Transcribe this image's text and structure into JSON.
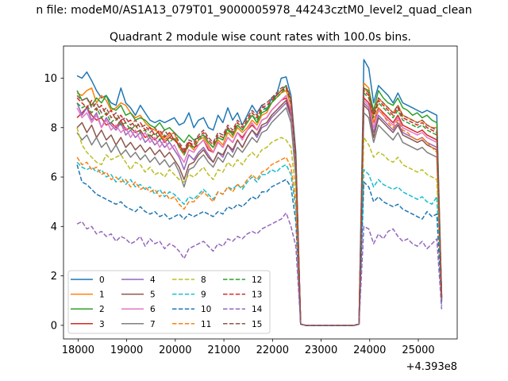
{
  "chart_data": {
    "type": "line",
    "suptitle": "n file: modeM0/AS1A13_079T01_9000005978_44243cztM0_level2_quad_clean",
    "title": "Quadrant 2 module wise count rates with 100.0s bins.",
    "xlabel": "",
    "ylabel": "",
    "x_offset_label": "+4.393e8",
    "xlim": [
      17700,
      25800
    ],
    "ylim": [
      -0.55,
      11.3
    ],
    "xticks": [
      18000,
      19000,
      20000,
      21000,
      22000,
      23000,
      24000,
      25000
    ],
    "yticks": [
      0,
      2,
      4,
      6,
      8,
      10
    ],
    "grid": false,
    "legend_position": "lower-left",
    "legend_columns": 4,
    "series_colors": [
      "#1f77b4",
      "#ff7f0e",
      "#2ca02c",
      "#d62728",
      "#9467bd",
      "#8c564b",
      "#e377c2",
      "#7f7f7f",
      "#bcbd22",
      "#17becf",
      "#1f77b4",
      "#ff7f0e",
      "#2ca02c",
      "#d62728",
      "#9467bd",
      "#8c564b"
    ],
    "series_styles": [
      "solid",
      "solid",
      "solid",
      "solid",
      "solid",
      "solid",
      "solid",
      "solid",
      "dashed",
      "dashed",
      "dashed",
      "dashed",
      "dashed",
      "dashed",
      "dashed",
      "dashed"
    ],
    "segment1_x_start": 17980,
    "segment1_x_step": 100,
    "segment2_x_start": 23780,
    "segment2_x_step": 100,
    "gap_x": [
      22680,
      22780,
      22880,
      22980,
      23080,
      23180,
      23280,
      23380,
      23480,
      23580,
      23680
    ],
    "series": [
      {
        "name": "0",
        "segment1": [
          10.1,
          10.0,
          10.25,
          9.9,
          9.5,
          9.2,
          9.3,
          9.0,
          8.9,
          9.6,
          9.0,
          8.8,
          8.5,
          8.9,
          8.6,
          8.3,
          8.2,
          8.3,
          8.2,
          8.3,
          8.4,
          8.1,
          8.2,
          8.6,
          8.0,
          8.3,
          8.4,
          8.0,
          7.9,
          8.5,
          8.2,
          8.8,
          8.3,
          8.6,
          8.1,
          8.5,
          8.9,
          8.6,
          8.9,
          8.7,
          9.2,
          9.3,
          10.0,
          10.05,
          9.3,
          7.0,
          0.05
        ],
        "segment2": [
          0.05,
          10.75,
          10.4,
          9.0,
          9.7,
          9.5,
          9.3,
          9.0,
          9.4,
          9.0,
          8.9,
          8.8,
          8.7,
          8.6,
          8.7,
          8.6,
          8.5,
          1.2
        ]
      },
      {
        "name": "1",
        "segment1": [
          9.4,
          9.3,
          9.5,
          9.6,
          9.0,
          9.3,
          9.1,
          8.7,
          8.8,
          9.0,
          8.9,
          8.6,
          8.4,
          8.5,
          8.2,
          8.0,
          7.9,
          7.8,
          7.5,
          7.7,
          7.8,
          7.2,
          6.9,
          7.3,
          7.1,
          7.5,
          7.6,
          7.3,
          7.0,
          7.5,
          7.3,
          7.8,
          7.6,
          8.0,
          7.8,
          8.0,
          8.3,
          8.1,
          8.5,
          8.6,
          9.0,
          9.2,
          9.4,
          9.5,
          8.9,
          6.5,
          0.05
        ],
        "segment2": [
          0.05,
          9.8,
          9.6,
          8.5,
          9.2,
          9.0,
          8.8,
          8.6,
          8.9,
          8.5,
          8.4,
          8.3,
          8.2,
          8.3,
          8.1,
          8.0,
          8.0,
          1.1
        ]
      },
      {
        "name": "2",
        "segment1": [
          9.5,
          9.1,
          9.2,
          8.9,
          9.2,
          9.0,
          9.3,
          8.8,
          8.7,
          8.9,
          8.5,
          8.6,
          8.3,
          8.4,
          8.3,
          8.1,
          8.0,
          8.2,
          7.9,
          8.0,
          7.8,
          7.6,
          7.4,
          7.7,
          7.5,
          7.6,
          7.7,
          7.4,
          7.2,
          7.6,
          7.5,
          8.0,
          7.7,
          8.1,
          7.9,
          8.2,
          8.5,
          8.2,
          8.6,
          8.7,
          9.0,
          9.3,
          9.5,
          9.7,
          9.1,
          6.8,
          0.05
        ],
        "segment2": [
          0.05,
          9.6,
          9.5,
          8.7,
          9.5,
          9.2,
          9.0,
          8.9,
          9.2,
          8.8,
          8.7,
          8.5,
          8.6,
          8.4,
          8.5,
          8.3,
          8.2,
          1.15
        ]
      },
      {
        "name": "3",
        "segment1": [
          8.4,
          8.6,
          8.8,
          8.5,
          8.3,
          8.4,
          8.1,
          8.2,
          8.0,
          8.3,
          7.9,
          8.0,
          7.8,
          7.9,
          7.6,
          7.7,
          7.5,
          7.7,
          7.4,
          7.6,
          7.5,
          7.3,
          7.0,
          7.4,
          7.2,
          7.3,
          7.5,
          7.1,
          7.0,
          7.4,
          7.2,
          7.6,
          7.4,
          7.8,
          7.6,
          7.9,
          8.1,
          7.9,
          8.3,
          8.4,
          8.7,
          8.9,
          9.1,
          9.2,
          8.6,
          6.3,
          0.05
        ],
        "segment2": [
          0.05,
          9.2,
          9.0,
          8.2,
          8.8,
          8.6,
          8.4,
          8.2,
          8.5,
          8.1,
          8.0,
          7.9,
          7.8,
          7.9,
          7.7,
          7.6,
          7.5,
          1.05
        ]
      },
      {
        "name": "4",
        "segment1": [
          9.0,
          8.5,
          8.8,
          8.3,
          8.6,
          8.0,
          8.4,
          8.1,
          7.9,
          8.2,
          7.7,
          7.9,
          7.6,
          7.8,
          7.4,
          7.6,
          7.3,
          7.5,
          7.2,
          7.4,
          7.1,
          6.8,
          6.3,
          6.9,
          6.7,
          7.0,
          7.2,
          6.9,
          6.6,
          7.0,
          6.8,
          7.3,
          7.0,
          7.5,
          7.2,
          7.6,
          7.9,
          7.6,
          8.0,
          8.1,
          8.4,
          8.6,
          8.8,
          9.0,
          8.4,
          6.2,
          0.05
        ],
        "segment2": [
          0.05,
          9.0,
          8.8,
          7.8,
          8.5,
          8.3,
          8.1,
          7.9,
          8.2,
          7.8,
          7.7,
          7.6,
          7.5,
          7.6,
          7.4,
          7.3,
          7.2,
          1.0
        ]
      },
      {
        "name": "5",
        "segment1": [
          8.0,
          8.2,
          7.8,
          8.1,
          7.6,
          7.9,
          7.5,
          7.7,
          7.3,
          7.6,
          7.2,
          7.4,
          7.1,
          7.3,
          7.0,
          7.2,
          6.9,
          7.1,
          6.8,
          7.0,
          6.7,
          6.4,
          5.9,
          6.5,
          6.6,
          6.9,
          7.1,
          6.8,
          6.6,
          7.0,
          6.9,
          7.3,
          7.1,
          7.5,
          7.2,
          7.6,
          7.9,
          7.7,
          8.1,
          8.2,
          8.5,
          8.7,
          8.9,
          9.1,
          8.5,
          6.2,
          0.05
        ],
        "segment2": [
          0.05,
          8.9,
          8.7,
          7.6,
          8.4,
          8.2,
          8.0,
          7.8,
          8.1,
          7.7,
          7.6,
          7.5,
          7.4,
          7.5,
          7.3,
          7.2,
          7.1,
          1.0
        ]
      },
      {
        "name": "6",
        "segment1": [
          8.8,
          8.4,
          8.6,
          8.2,
          8.5,
          8.0,
          8.3,
          7.9,
          8.1,
          7.8,
          8.0,
          7.6,
          7.9,
          7.5,
          7.8,
          7.4,
          7.6,
          7.2,
          7.5,
          7.1,
          7.3,
          6.9,
          6.6,
          7.1,
          7.0,
          7.3,
          7.5,
          7.2,
          7.0,
          7.4,
          7.2,
          7.6,
          7.4,
          7.8,
          7.5,
          7.9,
          8.2,
          7.9,
          8.3,
          8.4,
          8.7,
          8.9,
          9.1,
          9.3,
          8.7,
          6.4,
          0.05
        ],
        "segment2": [
          0.05,
          9.1,
          8.9,
          8.0,
          8.7,
          8.5,
          8.3,
          8.1,
          8.4,
          8.0,
          7.9,
          7.8,
          7.7,
          7.8,
          7.6,
          7.5,
          7.4,
          1.05
        ]
      },
      {
        "name": "7",
        "segment1": [
          7.8,
          7.5,
          7.7,
          7.3,
          7.6,
          7.2,
          7.4,
          7.0,
          7.3,
          6.9,
          7.1,
          6.8,
          7.0,
          6.7,
          6.9,
          6.6,
          6.8,
          6.5,
          6.7,
          6.4,
          6.6,
          6.2,
          5.6,
          6.3,
          6.4,
          6.7,
          6.9,
          6.6,
          6.4,
          6.8,
          6.6,
          7.0,
          6.8,
          7.2,
          7.0,
          7.3,
          7.6,
          7.4,
          7.8,
          7.9,
          8.2,
          8.4,
          8.6,
          8.8,
          8.2,
          6.0,
          0.05
        ],
        "segment2": [
          0.05,
          8.6,
          8.4,
          7.4,
          8.1,
          7.9,
          7.7,
          7.5,
          7.8,
          7.4,
          7.3,
          7.2,
          7.1,
          7.2,
          7.0,
          6.9,
          6.8,
          0.95
        ]
      },
      {
        "name": "8",
        "segment1": [
          8.0,
          7.3,
          7.0,
          6.8,
          6.6,
          6.5,
          6.9,
          6.7,
          6.8,
          6.9,
          6.6,
          6.3,
          6.6,
          6.5,
          6.2,
          6.4,
          6.1,
          6.2,
          6.0,
          6.3,
          6.1,
          5.9,
          5.8,
          6.1,
          6.0,
          6.2,
          6.4,
          6.1,
          5.9,
          6.3,
          6.2,
          6.6,
          6.4,
          6.7,
          6.5,
          6.8,
          7.0,
          6.8,
          7.1,
          7.2,
          7.4,
          7.5,
          7.6,
          7.5,
          7.2,
          5.4,
          0.05
        ],
        "segment2": [
          0.05,
          7.6,
          7.3,
          6.8,
          7.0,
          6.9,
          6.7,
          6.6,
          6.8,
          6.5,
          6.4,
          6.3,
          6.2,
          6.3,
          6.1,
          6.0,
          5.9,
          0.9
        ]
      },
      {
        "name": "9",
        "segment1": [
          6.6,
          6.4,
          6.3,
          6.4,
          6.2,
          6.3,
          6.0,
          6.1,
          5.8,
          6.0,
          5.7,
          5.9,
          5.6,
          5.7,
          5.5,
          5.6,
          5.3,
          5.5,
          5.2,
          5.4,
          5.3,
          5.1,
          4.9,
          5.2,
          5.1,
          5.3,
          5.5,
          5.3,
          5.1,
          5.4,
          5.3,
          5.6,
          5.5,
          5.7,
          5.5,
          5.8,
          6.0,
          5.8,
          6.1,
          6.1,
          6.3,
          6.2,
          6.4,
          6.5,
          6.1,
          4.7,
          0.05
        ],
        "segment2": [
          0.05,
          6.3,
          6.1,
          5.6,
          5.9,
          5.7,
          5.6,
          5.5,
          5.6,
          5.4,
          5.3,
          5.2,
          5.1,
          5.2,
          5.0,
          4.9,
          5.2,
          0.85
        ]
      },
      {
        "name": "10",
        "segment1": [
          6.5,
          5.8,
          5.7,
          5.5,
          5.3,
          5.2,
          5.1,
          5.0,
          4.9,
          5.0,
          4.8,
          4.7,
          4.6,
          4.8,
          4.6,
          4.5,
          4.6,
          4.4,
          4.5,
          4.3,
          4.4,
          4.5,
          4.3,
          4.5,
          4.4,
          4.5,
          4.6,
          4.5,
          4.4,
          4.6,
          4.5,
          4.8,
          4.7,
          4.9,
          4.8,
          5.0,
          5.2,
          5.1,
          5.4,
          5.4,
          5.6,
          5.7,
          5.8,
          5.9,
          5.6,
          4.2,
          0.05
        ],
        "segment2": [
          0.05,
          5.8,
          5.6,
          5.0,
          5.2,
          5.0,
          4.9,
          4.8,
          4.9,
          4.7,
          4.6,
          4.5,
          4.4,
          4.3,
          4.6,
          4.4,
          4.5,
          0.8
        ]
      },
      {
        "name": "11",
        "segment1": [
          6.8,
          6.5,
          6.6,
          6.3,
          6.4,
          6.1,
          6.2,
          5.9,
          6.0,
          5.8,
          5.9,
          5.6,
          5.8,
          5.5,
          5.6,
          5.4,
          5.5,
          5.2,
          5.4,
          5.1,
          5.2,
          4.9,
          4.7,
          5.0,
          5.0,
          5.2,
          5.4,
          5.2,
          5.0,
          5.4,
          5.3,
          5.6,
          5.4,
          5.7,
          5.6,
          5.9,
          6.1,
          5.9,
          6.2,
          6.3,
          6.5,
          6.6,
          6.7,
          6.8,
          6.4,
          5.0,
          0.05
        ],
        "segment2": [
          0.05,
          9.6,
          9.4,
          8.2,
          8.8,
          8.5,
          8.2,
          8.0,
          8.3,
          7.9,
          7.8,
          7.6,
          7.5,
          7.6,
          7.4,
          7.2,
          7.0,
          1.0
        ]
      },
      {
        "name": "12",
        "segment1": [
          9.0,
          8.8,
          8.9,
          8.6,
          8.8,
          8.4,
          8.6,
          8.2,
          8.4,
          8.1,
          8.2,
          7.9,
          8.1,
          7.8,
          7.9,
          7.6,
          7.8,
          7.5,
          7.7,
          7.4,
          7.6,
          7.2,
          6.9,
          7.3,
          7.2,
          7.5,
          7.7,
          7.4,
          7.2,
          7.6,
          7.5,
          7.9,
          7.7,
          8.1,
          7.9,
          8.2,
          8.5,
          8.3,
          8.7,
          8.8,
          9.0,
          9.2,
          9.4,
          9.6,
          9.0,
          6.6,
          0.05
        ],
        "segment2": [
          0.05,
          9.4,
          9.2,
          8.4,
          9.0,
          8.8,
          8.6,
          8.4,
          8.7,
          8.3,
          8.2,
          8.1,
          8.0,
          8.1,
          7.9,
          7.8,
          7.7,
          1.1
        ]
      },
      {
        "name": "13",
        "segment1": [
          9.2,
          9.0,
          8.8,
          9.1,
          8.7,
          8.9,
          8.5,
          8.7,
          8.3,
          8.5,
          8.2,
          8.3,
          8.0,
          8.2,
          7.9,
          8.0,
          7.7,
          7.9,
          7.6,
          7.8,
          7.5,
          7.3,
          7.0,
          7.4,
          7.3,
          7.6,
          7.8,
          7.5,
          7.3,
          7.7,
          7.6,
          8.0,
          7.8,
          8.2,
          8.0,
          8.3,
          8.6,
          8.4,
          8.8,
          8.9,
          9.1,
          9.3,
          9.5,
          9.6,
          9.1,
          6.7,
          0.05
        ],
        "segment2": [
          0.05,
          9.5,
          9.3,
          8.5,
          9.1,
          8.9,
          8.7,
          8.5,
          8.8,
          8.4,
          8.3,
          8.2,
          8.1,
          8.2,
          8.0,
          7.9,
          7.8,
          1.1
        ]
      },
      {
        "name": "14",
        "segment1": [
          4.1,
          4.2,
          3.9,
          4.0,
          3.7,
          3.8,
          3.6,
          3.7,
          3.4,
          3.6,
          3.5,
          3.3,
          3.4,
          3.6,
          3.2,
          3.5,
          3.3,
          3.4,
          3.1,
          3.3,
          3.2,
          3.0,
          2.7,
          3.1,
          3.2,
          3.3,
          3.4,
          3.2,
          3.0,
          3.3,
          3.2,
          3.5,
          3.4,
          3.6,
          3.5,
          3.7,
          3.8,
          3.7,
          3.9,
          4.0,
          4.1,
          4.2,
          4.3,
          4.55,
          4.0,
          3.2,
          0.05
        ],
        "segment2": [
          0.05,
          4.0,
          3.9,
          3.3,
          3.7,
          3.5,
          3.8,
          3.9,
          3.6,
          3.4,
          3.5,
          3.3,
          3.2,
          3.4,
          3.1,
          3.3,
          3.5,
          0.65
        ]
      },
      {
        "name": "15",
        "segment1": [
          9.3,
          9.1,
          9.2,
          8.8,
          9.0,
          8.6,
          8.8,
          8.4,
          8.6,
          8.3,
          8.4,
          8.1,
          8.3,
          8.0,
          8.1,
          7.8,
          8.0,
          7.7,
          7.9,
          7.6,
          7.8,
          7.4,
          7.1,
          7.5,
          7.4,
          7.7,
          7.9,
          7.6,
          7.4,
          7.8,
          7.7,
          8.1,
          7.9,
          8.3,
          8.1,
          8.4,
          8.7,
          8.5,
          8.9,
          9.0,
          9.2,
          9.4,
          9.6,
          9.7,
          9.2,
          6.8,
          0.05
        ],
        "segment2": [
          0.05,
          9.6,
          9.4,
          8.6,
          9.2,
          9.0,
          8.8,
          8.6,
          8.9,
          8.5,
          8.4,
          8.3,
          8.2,
          8.3,
          8.1,
          8.0,
          7.9,
          1.15
        ]
      }
    ]
  }
}
